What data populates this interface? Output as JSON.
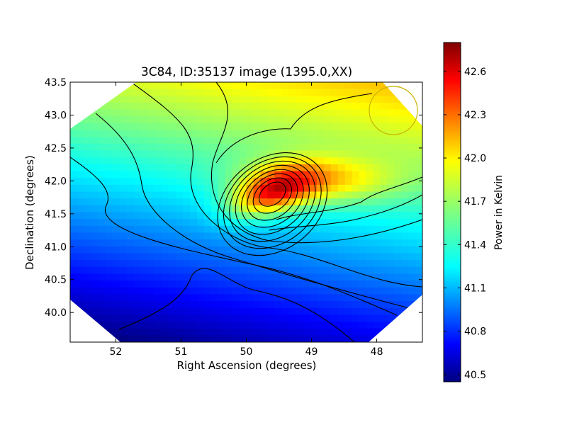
{
  "chart_data": {
    "type": "heatmap",
    "title": "3C84, ID:35137 image (1395.0,XX)",
    "xlabel": "Right Ascension (degrees)",
    "ylabel": "Declination (degrees)",
    "xlim": [
      52.7,
      47.3
    ],
    "ylim": [
      39.55,
      43.5
    ],
    "xticks": [
      52,
      51,
      50,
      49,
      48
    ],
    "yticks": [
      40.0,
      40.5,
      41.0,
      41.5,
      42.0,
      42.5,
      43.0,
      43.5
    ],
    "xtick_labels": [
      "52",
      "51",
      "50",
      "49",
      "48"
    ],
    "ytick_labels": [
      "40.0",
      "40.5",
      "41.0",
      "41.5",
      "42.0",
      "42.5",
      "43.0",
      "43.5"
    ],
    "colorbar": {
      "label": "Power in Kelvin",
      "colormap": "jet",
      "range": [
        40.45,
        42.8
      ],
      "ticks": [
        40.5,
        40.8,
        41.1,
        41.4,
        41.7,
        42.0,
        42.3,
        42.6
      ],
      "tick_labels": [
        "40.5",
        "40.8",
        "41.1",
        "41.4",
        "41.7",
        "42.0",
        "42.3",
        "42.6"
      ]
    },
    "peak": {
      "ra": 49.6,
      "dec": 41.82,
      "value": 42.75
    },
    "field_min_value": 40.45,
    "beam_marker": {
      "ra": 47.75,
      "dec": 43.07,
      "color": "#c8b400"
    },
    "contour_count": 13,
    "grid": false,
    "legend": "none"
  }
}
